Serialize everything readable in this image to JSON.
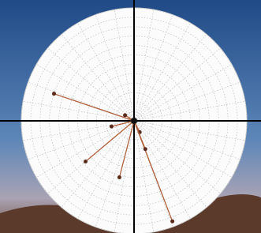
{
  "chart_data": {
    "type": "scatter",
    "x": [
      -0.71,
      -0.43,
      0.34,
      -0.13,
      -0.2,
      0.05,
      -0.08,
      0.1
    ],
    "y": [
      0.24,
      -0.36,
      -0.89,
      -0.5,
      -0.05,
      -0.1,
      0.05,
      -0.25
    ],
    "xlim": [
      -1,
      1
    ],
    "ylim": [
      -1,
      1
    ],
    "color": "#b0603a",
    "grid": true
  }
}
